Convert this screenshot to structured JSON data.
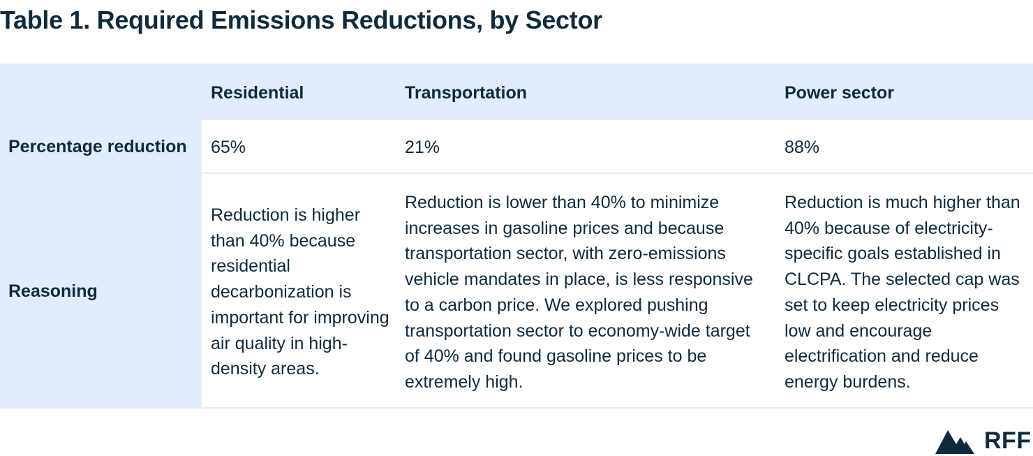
{
  "title": "Table 1.  Required Emissions Reductions, by Sector",
  "table": {
    "columns": [
      "Residential",
      "Transportation",
      "Power sector"
    ],
    "rows": [
      {
        "label": "Percentage reduction",
        "cells": [
          "65%",
          "21%",
          "88%"
        ]
      },
      {
        "label": "Reasoning",
        "cells": [
          "Reduction is higher than 40% because residential decarbonization is important for improving air quality in high-density areas.",
          "Reduction is lower than 40% to minimize increases in gasoline prices and because transportation sector, with zero-emissions vehicle mandates in place, is less responsive to a carbon price. We explored pushing transportation sector to economy-wide target of 40% and found gasoline prices to be extremely high.",
          "Reduction is much higher than 40% because of electricity-specific goals established in CLCPA. The selected cap was set to keep electricity prices low and encourage electrification and reduce energy burdens."
        ]
      }
    ]
  },
  "logo": {
    "text": "RFF",
    "icon": "mountain-logo-icon"
  },
  "colors": {
    "text": "#0f2a3d",
    "header_band": "#e1eef9",
    "background": "#ffffff"
  }
}
